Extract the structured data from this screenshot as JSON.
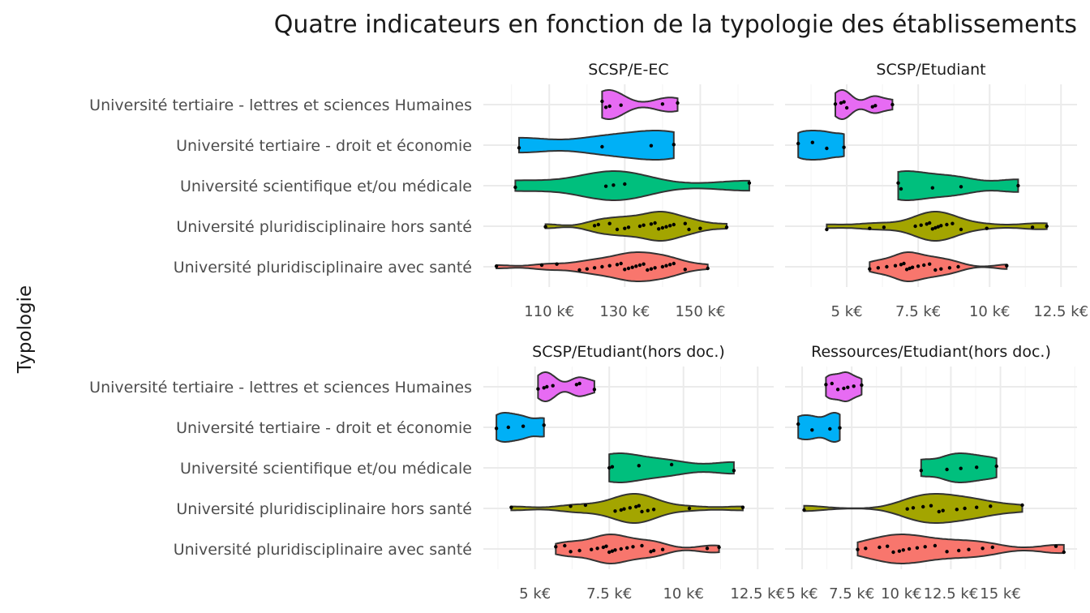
{
  "chart_data": {
    "type": "violin",
    "title": "Quatre indicateurs en fonction de la typologie des établissements",
    "ylabel": "Typologie",
    "categories": [
      "Université tertiaire - lettres et sciences Humaines",
      "Université tertiaire - droit et économie",
      "Université scientifique et/ou médicale",
      "Université pluridisciplinaire hors santé",
      "Université pluridisciplinaire avec santé"
    ],
    "category_colors": [
      "#E76BF3",
      "#00B0F6",
      "#00BF7D",
      "#A3A500",
      "#F8766D"
    ],
    "facets": [
      {
        "name": "SCSP/E-EC",
        "xlim": [
          96,
          166
        ],
        "xticks": [
          110,
          130,
          150
        ],
        "xtick_labels": [
          "110 k€",
          "130 k€",
          "150 k€"
        ],
        "groups": [
          {
            "points": [
              124,
              125,
              126,
              129,
              140,
              144
            ]
          },
          {
            "points": [
              102,
              124,
              137,
              143
            ]
          },
          {
            "points": [
              101,
              125,
              127,
              130,
              163
            ]
          },
          {
            "points": [
              109,
              122,
              123,
              126,
              128,
              130,
              131,
              134,
              135,
              137,
              138,
              139,
              140,
              141,
              142,
              143,
              146,
              147,
              150,
              157
            ]
          },
          {
            "points": [
              96,
              108,
              112,
              118,
              120,
              122,
              124,
              126,
              128,
              129,
              130,
              131,
              132,
              133,
              134,
              135,
              136,
              137,
              138,
              140,
              141,
              142,
              143,
              146,
              152
            ]
          }
        ]
      },
      {
        "name": "SCSP/Etudiant",
        "xlim": [
          3.3,
          12.6
        ],
        "xticks": [
          5,
          7.5,
          10,
          12.5
        ],
        "xtick_labels": [
          "5 k€",
          "7.5 k€",
          "10 k€",
          "12.5 k€"
        ],
        "groups": [
          {
            "points": [
              4.6,
              4.8,
              4.9,
              5.0,
              5.9,
              6.0,
              6.6
            ]
          },
          {
            "points": [
              3.3,
              3.8,
              4.3,
              4.9
            ]
          },
          {
            "points": [
              6.8,
              6.9,
              8.0,
              9.0,
              11.0
            ]
          },
          {
            "points": [
              4.3,
              5.8,
              6.3,
              7.4,
              7.6,
              7.8,
              7.9,
              8.0,
              8.1,
              8.2,
              8.3,
              8.5,
              8.7,
              9.0,
              9.9,
              11.5,
              12.0
            ]
          },
          {
            "points": [
              5.8,
              6.1,
              6.4,
              6.7,
              6.9,
              7.0,
              7.1,
              7.2,
              7.3,
              7.5,
              7.7,
              7.9,
              8.1,
              8.3,
              8.6,
              8.9,
              10.6
            ]
          }
        ]
      },
      {
        "name": "SCSP/Etudiant(hors doc.)",
        "xlim": [
          3.7,
          12.6
        ],
        "xticks": [
          5,
          7.5,
          10,
          12.5
        ],
        "xtick_labels": [
          "5 k€",
          "7.5 k€",
          "10 k€",
          "12.5 k€"
        ],
        "groups": [
          {
            "points": [
              5.1,
              5.3,
              5.4,
              5.6,
              6.4,
              6.5,
              7.0
            ]
          },
          {
            "points": [
              3.7,
              4.1,
              4.6,
              5.3
            ]
          },
          {
            "points": [
              7.5,
              7.6,
              8.5,
              9.6,
              11.7
            ]
          },
          {
            "points": [
              4.2,
              6.2,
              6.7,
              7.7,
              7.9,
              8.0,
              8.2,
              8.4,
              8.5,
              8.6,
              8.8,
              9.0,
              10.2,
              12.0
            ]
          },
          {
            "points": [
              5.7,
              6.0,
              6.2,
              6.5,
              6.9,
              7.1,
              7.3,
              7.4,
              7.5,
              7.6,
              7.7,
              7.9,
              8.1,
              8.3,
              8.6,
              8.9,
              9.0,
              9.3,
              10.8,
              11.2
            ]
          }
        ]
      },
      {
        "name": "Ressources/Etudiant(hors doc.)",
        "xlim": [
          4.8,
          18.2
        ],
        "xticks": [
          5,
          7.5,
          10,
          12.5,
          15
        ],
        "xtick_labels": [
          "5 k€",
          "7.5 k€",
          "10 k€",
          "12.5 k€",
          "15 k€"
        ],
        "groups": [
          {
            "points": [
              6.2,
              6.5,
              6.8,
              7.1,
              7.3,
              7.6,
              8.0
            ]
          },
          {
            "points": [
              4.8,
              5.5,
              6.4,
              6.9
            ]
          },
          {
            "points": [
              11.0,
              12.3,
              13.0,
              13.8,
              14.8
            ]
          },
          {
            "points": [
              5.1,
              10.3,
              10.6,
              11.1,
              11.5,
              11.9,
              12.1,
              12.8,
              13.2,
              13.8,
              14.5,
              16.1
            ]
          },
          {
            "points": [
              7.8,
              8.2,
              8.9,
              9.3,
              9.6,
              9.9,
              10.1,
              10.4,
              10.8,
              11.2,
              11.7,
              12.3,
              12.9,
              13.4,
              14.1,
              14.6,
              17.8,
              18.2
            ]
          }
        ]
      }
    ],
    "grid": true,
    "legend": "none"
  }
}
